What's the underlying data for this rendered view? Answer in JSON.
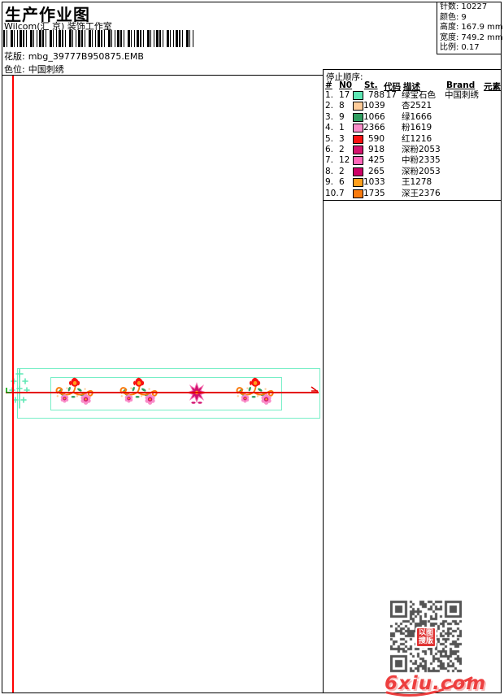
{
  "page": {
    "title": "生产作业图",
    "subtitle": "Wilcom(汇 京) 装饰工作室",
    "fields": [
      {
        "label": "花版:",
        "value": "mbg_39777B950875.EMB"
      },
      {
        "label": "色位:",
        "value": "中国刺绣"
      }
    ]
  },
  "info_box": {
    "rows": [
      {
        "label": "针数:",
        "value": "10227"
      },
      {
        "label": "颜色:",
        "value": "9"
      },
      {
        "label": "高度:",
        "value": "167.9 mm"
      },
      {
        "label": "宽度:",
        "value": "749.2 mm"
      },
      {
        "label": "比例:",
        "value": "0.17"
      }
    ]
  },
  "sequence_table": {
    "title": "停止顺序:",
    "columns": {
      "num": "#",
      "n0": "N0",
      "st": "St.",
      "code": "代码",
      "desc": "描述",
      "brand": "Brand",
      "elem": "元素"
    },
    "rows": [
      {
        "num": "1.",
        "n0": "17",
        "color": "#5FE8B5",
        "st": "788",
        "code": "17",
        "desc": "绿宝石色",
        "brand": "中国刺绣",
        "elem": ""
      },
      {
        "num": "2.",
        "n0": "8",
        "color": "#FFCC99",
        "st": "1039",
        "code": "",
        "desc": "杏2521",
        "brand": "",
        "elem": ""
      },
      {
        "num": "3.",
        "n0": "9",
        "color": "#2F9E60",
        "st": "1066",
        "code": "",
        "desc": "绿1666",
        "brand": "",
        "elem": ""
      },
      {
        "num": "4.",
        "n0": "1",
        "color": "#F98CC8",
        "st": "2366",
        "code": "",
        "desc": "粉1619",
        "brand": "",
        "elem": ""
      },
      {
        "num": "5.",
        "n0": "3",
        "color": "#F81212",
        "st": "590",
        "code": "",
        "desc": "红1216",
        "brand": "",
        "elem": ""
      },
      {
        "num": "6.",
        "n0": "2",
        "color": "#D4146E",
        "st": "918",
        "code": "",
        "desc": "深粉2053",
        "brand": "",
        "elem": ""
      },
      {
        "num": "7.",
        "n0": "12",
        "color": "#FF66B8",
        "st": "425",
        "code": "",
        "desc": "中粉2335",
        "brand": "",
        "elem": ""
      },
      {
        "num": "8.",
        "n0": "2",
        "color": "#CC0066",
        "st": "265",
        "code": "",
        "desc": "深粉2053",
        "brand": "",
        "elem": ""
      },
      {
        "num": "9.",
        "n0": "6",
        "color": "#FF9F1C",
        "st": "1033",
        "code": "",
        "desc": "王1278",
        "brand": "",
        "elem": ""
      },
      {
        "num": "10.",
        "n0": "7",
        "color": "#F97B0E",
        "st": "1735",
        "code": "",
        "desc": "深王2376",
        "brand": "",
        "elem": ""
      }
    ]
  },
  "design": {
    "colors": {
      "mint": "#5FE8B5",
      "extent_box": "#76EEC6",
      "guide_red": "#E40000",
      "stem_orange": "#F97B0E",
      "flower_red": "#F81212",
      "daisy_pink": "#F98CC8",
      "deep_pink": "#D1116E",
      "leaf_green": "#2F9E60",
      "peach": "#FFCC99",
      "center_orange": "#FF9F1C"
    }
  },
  "qr": {
    "center_lines": [
      "以图",
      "搜版"
    ]
  },
  "watermark": {
    "text": "6xiu.com",
    "color": "#ED3F3F"
  }
}
